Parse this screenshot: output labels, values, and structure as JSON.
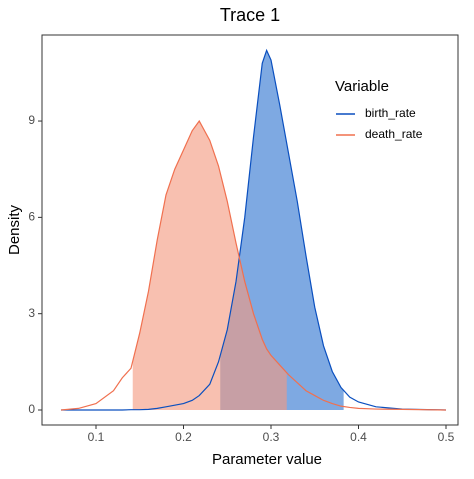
{
  "chart_data": {
    "type": "density",
    "title": "Trace 1",
    "x_label": "Parameter value",
    "y_label": "Density",
    "legend_title": "Variable",
    "legend": "right",
    "x": [
      0.06,
      0.08,
      0.1,
      0.12,
      0.13,
      0.14,
      0.15,
      0.16,
      0.17,
      0.18,
      0.19,
      0.2,
      0.21,
      0.218,
      0.23,
      0.24,
      0.25,
      0.26,
      0.27,
      0.28,
      0.29,
      0.295,
      0.3,
      0.31,
      0.32,
      0.33,
      0.34,
      0.35,
      0.36,
      0.37,
      0.38,
      0.39,
      0.4,
      0.42,
      0.45,
      0.5
    ],
    "series": [
      {
        "name": "birth_rate",
        "color": "#0a4fbf",
        "fill": "#2f74d0",
        "interval": [
          0.242,
          0.383
        ],
        "values": [
          0,
          0,
          0,
          0,
          0,
          0.01,
          0.01,
          0.02,
          0.05,
          0.1,
          0.15,
          0.2,
          0.3,
          0.45,
          0.8,
          1.5,
          2.5,
          4.0,
          6.0,
          8.5,
          10.8,
          11.2,
          10.9,
          9.5,
          8.0,
          6.5,
          4.8,
          3.2,
          2.0,
          1.2,
          0.7,
          0.4,
          0.25,
          0.1,
          0.03,
          0
        ]
      },
      {
        "name": "death_rate",
        "color": "#f0704f",
        "fill": "#f49a80",
        "interval": [
          0.142,
          0.318
        ],
        "values": [
          0,
          0.05,
          0.2,
          0.6,
          1.0,
          1.3,
          2.4,
          3.7,
          5.3,
          6.7,
          7.5,
          8.1,
          8.7,
          9.0,
          8.4,
          7.6,
          6.5,
          5.2,
          4.0,
          3.0,
          2.2,
          1.9,
          1.7,
          1.4,
          1.1,
          0.85,
          0.6,
          0.45,
          0.3,
          0.2,
          0.12,
          0.08,
          0.05,
          0.03,
          0.02,
          0
        ]
      }
    ],
    "xlim": [
      0.0383,
      0.5137
    ],
    "xticks": [
      0.1,
      0.2,
      0.3,
      0.4,
      0.5
    ],
    "ylim": [
      -0.467,
      11.68
    ],
    "yticks": [
      0,
      3,
      6,
      9
    ]
  }
}
